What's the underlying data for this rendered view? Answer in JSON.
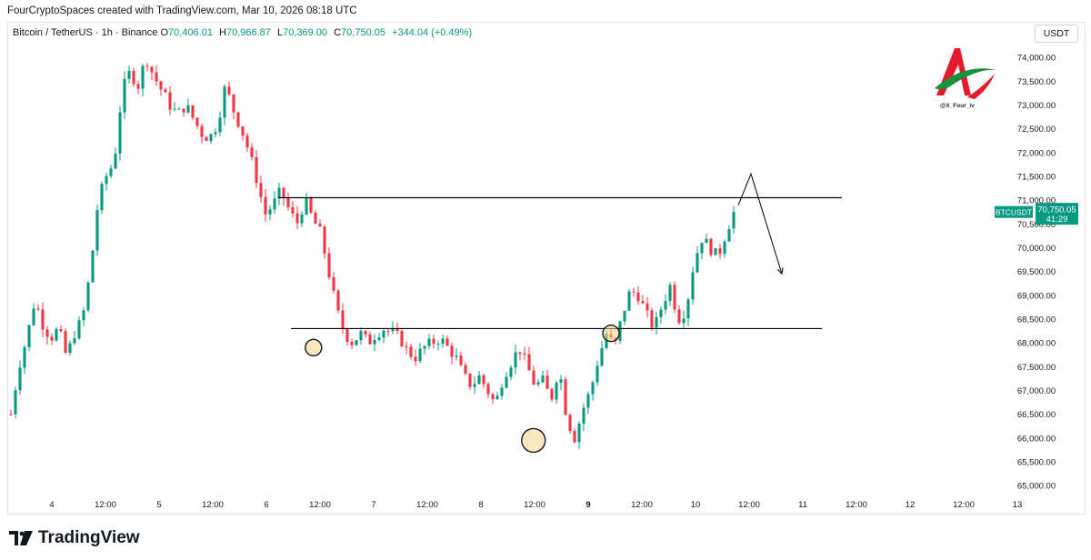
{
  "header": {
    "attribution": "FourCryptoSpaces created with TradingView.com, Mar 10, 2026 08:18 UTC"
  },
  "symbol": {
    "name": "Bitcoin / TetherUS · 1h · Binance",
    "open_label": "O",
    "open": "70,406.01",
    "high_label": "H",
    "high": "70,966.87",
    "low_label": "L",
    "low": "70,369.00",
    "close_label": "C",
    "close": "70,750.05",
    "change": "+344.04 (+0.49%)"
  },
  "currency_button": "USDT",
  "watermark": {
    "handle": "@X_Four_iv"
  },
  "footer": {
    "brand": "TradingView"
  },
  "colors": {
    "up": "#089981",
    "down": "#f23645",
    "line": "#000000",
    "highlight": "#f6d488"
  },
  "chart_data": {
    "type": "candlestick",
    "symbol": "BTCUSDT",
    "interval": "1h",
    "y_axis": {
      "min": 64850,
      "max": 74250,
      "ticks": [
        "74,000.00",
        "73,500.00",
        "73,000.00",
        "72,500.00",
        "72,000.00",
        "71,500.00",
        "71,000.00",
        "70,500.00",
        "70,000.00",
        "69,500.00",
        "69,000.00",
        "68,500.00",
        "68,000.00",
        "67,500.00",
        "67,000.00",
        "66,500.00",
        "66,000.00",
        "65,500.00",
        "65,000.00"
      ],
      "tick_values": [
        74000,
        73500,
        73000,
        72500,
        72000,
        71500,
        71000,
        70500,
        70000,
        69500,
        69000,
        68500,
        68000,
        67500,
        67000,
        66500,
        66000,
        65500,
        65000
      ]
    },
    "x_axis": {
      "labels": [
        "4",
        "12:00",
        "5",
        "12:00",
        "6",
        "12:00",
        "7",
        "12:00",
        "8",
        "12:00",
        "9",
        "12:00",
        "10",
        "12:00",
        "11",
        "12:00",
        "12",
        "12:00",
        "13"
      ],
      "bold": [
        false,
        false,
        false,
        false,
        false,
        false,
        false,
        false,
        false,
        false,
        true,
        false,
        false,
        false,
        false,
        false,
        false,
        false,
        false
      ]
    },
    "last_price": {
      "label": "BTCUSDT",
      "price": "70,750.05",
      "countdown": "41:29",
      "value": 70750.05
    },
    "path": [
      66500,
      67500,
      68100,
      68900,
      68400,
      68100,
      68300,
      67700,
      68200,
      68500,
      69500,
      71000,
      71500,
      71800,
      73300,
      73700,
      73400,
      74000,
      73600,
      73300,
      73000,
      72800,
      73000,
      72700,
      72400,
      72300,
      72600,
      73400,
      72900,
      72500,
      72000,
      71400,
      70700,
      70900,
      71200,
      70800,
      70500,
      71000,
      70600,
      70300,
      69500,
      68700,
      68200,
      68000,
      68200,
      68000,
      68200,
      68300,
      68200,
      68100,
      67800,
      67700,
      67900,
      68000,
      68100,
      67900,
      67700,
      67300,
      67100,
      67300,
      67000,
      66700,
      67300,
      67600,
      67900,
      67500,
      67100,
      67200,
      66800,
      67500,
      66400,
      66000,
      66600,
      67000,
      67700,
      68200,
      67900,
      68600,
      69100,
      69000,
      68600,
      68300,
      68800,
      69200,
      68500,
      68700,
      69700,
      70200,
      70000,
      69800,
      70300,
      70750.05
    ],
    "annotations": {
      "resistance_line": {
        "value": 71050,
        "from_x": 0.274,
        "to_x": 0.848
      },
      "support_line": {
        "value": 68300,
        "from_x": 0.287,
        "to_x": 0.828
      },
      "circles": [
        {
          "x_frac": 0.31,
          "value": 67900,
          "size": "small"
        },
        {
          "x_frac": 0.534,
          "value": 65950,
          "size": "large"
        },
        {
          "x_frac": 0.613,
          "value": 68200,
          "size": "small"
        }
      ],
      "projection": [
        [
          70890,
          70750
        ],
        [
          71550,
          null
        ],
        [
          69450,
          null
        ]
      ]
    }
  }
}
